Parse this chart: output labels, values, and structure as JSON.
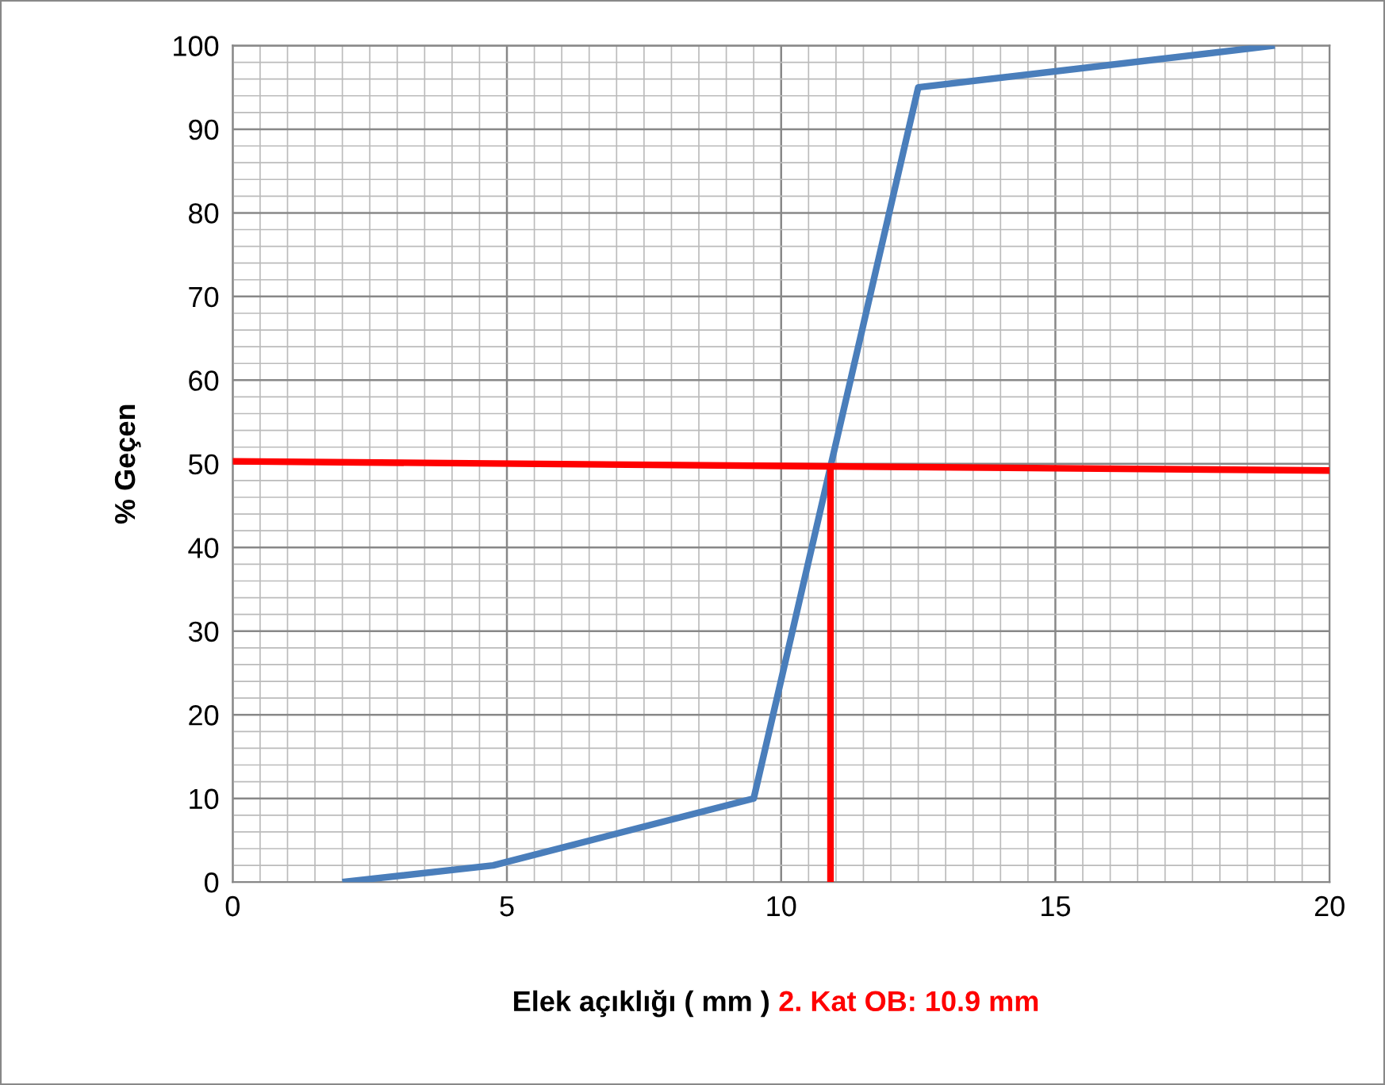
{
  "chart_data": {
    "type": "line",
    "xlabel": "Elek açıklığı ( mm )",
    "ylabel": "% Geçen",
    "annotations": [
      "2. Kat OB: 10.9 mm"
    ],
    "series": [
      {
        "color": "#4a7ebb",
        "x": [
          2,
          4.75,
          9.5,
          12.5,
          19
        ],
        "values": [
          0,
          2,
          10,
          95,
          100
        ]
      },
      {
        "color": "#ff0000",
        "x": [
          0,
          20
        ],
        "values": [
          50.3,
          49.2
        ]
      },
      {
        "color": "#ff0000",
        "x": [
          10.9,
          10.9
        ],
        "values": [
          0,
          50
        ]
      }
    ],
    "xlim": [
      0,
      20
    ],
    "xticks": [
      0,
      5,
      10,
      15,
      20
    ],
    "ylim": [
      0,
      100
    ],
    "yticks": [
      0,
      10,
      20,
      30,
      40,
      50,
      60,
      70,
      80,
      90,
      100
    ],
    "grid": true,
    "legend": false,
    "marker": "none",
    "line_style": "solid"
  }
}
